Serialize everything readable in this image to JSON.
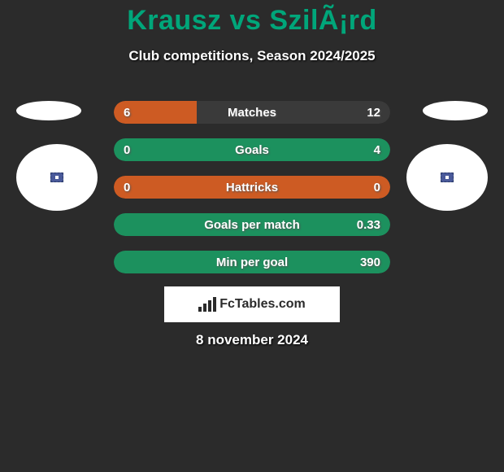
{
  "header": {
    "title": "Krausz vs SzilÃ¡rd",
    "subtitle": "Club competitions, Season 2024/2025"
  },
  "colors": {
    "brand_green": "#00a67a",
    "bar_orange": "#cd5b23",
    "bar_gray": "#3a3a3a",
    "bar_green_full": "#1c915e",
    "text_white": "#ffffff"
  },
  "stats": [
    {
      "label": "Matches",
      "left_val": "6",
      "right_val": "12",
      "left_width_pct": 30,
      "right_width_pct": 70,
      "left_color": "#cd5b23",
      "right_color": "#3a3a3a"
    },
    {
      "label": "Goals",
      "left_val": "0",
      "right_val": "4",
      "left_width_pct": 0,
      "right_width_pct": 100,
      "left_color": "#cd5b23",
      "right_color": "#1c915e"
    },
    {
      "label": "Hattricks",
      "left_val": "0",
      "right_val": "0",
      "left_width_pct": 100,
      "right_width_pct": 0,
      "left_color": "#cd5b23",
      "right_color": "#3a3a3a"
    },
    {
      "label": "Goals per match",
      "left_val": "",
      "right_val": "0.33",
      "left_width_pct": 0,
      "right_width_pct": 100,
      "left_color": "#cd5b23",
      "right_color": "#1c915e"
    },
    {
      "label": "Min per goal",
      "left_val": "",
      "right_val": "390",
      "left_width_pct": 0,
      "right_width_pct": 100,
      "left_color": "#cd5b23",
      "right_color": "#1c915e"
    }
  ],
  "footer": {
    "brand": "FcTables.com",
    "date": "8 november 2024"
  }
}
